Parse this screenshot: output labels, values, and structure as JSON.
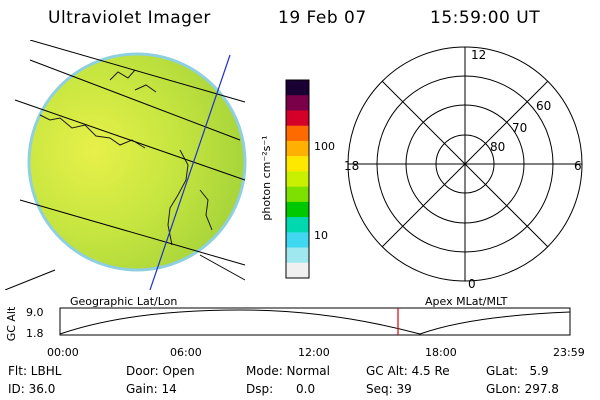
{
  "header": {
    "title": "Ultraviolet Imager",
    "date": "19 Feb 07",
    "time": "15:59:00 UT"
  },
  "colorbar": {
    "unit_label": "photon cm⁻²s⁻¹",
    "ticks": [
      "100",
      "10"
    ],
    "colors": [
      "#1a0033",
      "#7a004a",
      "#d4002a",
      "#ff6a00",
      "#ffb000",
      "#ffe800",
      "#c8f000",
      "#7ee000",
      "#00c800",
      "#00d8b0",
      "#40d8f0",
      "#a0e8f0",
      "#f0f0f0"
    ]
  },
  "polar_plot": {
    "mlt_labels": [
      "12",
      "18",
      "6",
      "0"
    ],
    "lat_labels": [
      "60",
      "70",
      "80"
    ]
  },
  "timeline": {
    "ylabel": "GC Alt",
    "y_ticks": [
      "9.0",
      "1.8"
    ],
    "left_label": "Geographic Lat/Lon",
    "right_label": "Apex MLat/MLT",
    "x_ticks": [
      "00:00",
      "06:00",
      "12:00",
      "18:00",
      "23:59"
    ]
  },
  "info": {
    "row1": {
      "flt": "Flt: LBHL",
      "door": "Door: Open",
      "mode": "Mode: Normal",
      "gcalt": "GC Alt: 4.5 Re",
      "glat": "GLat:   5.9"
    },
    "row2": {
      "id": "ID: 36.0",
      "gain": "Gain: 14",
      "dsp": "Dsp:      0.0",
      "seq": "Seq: 39",
      "glon": "GLon: 297.8"
    }
  }
}
